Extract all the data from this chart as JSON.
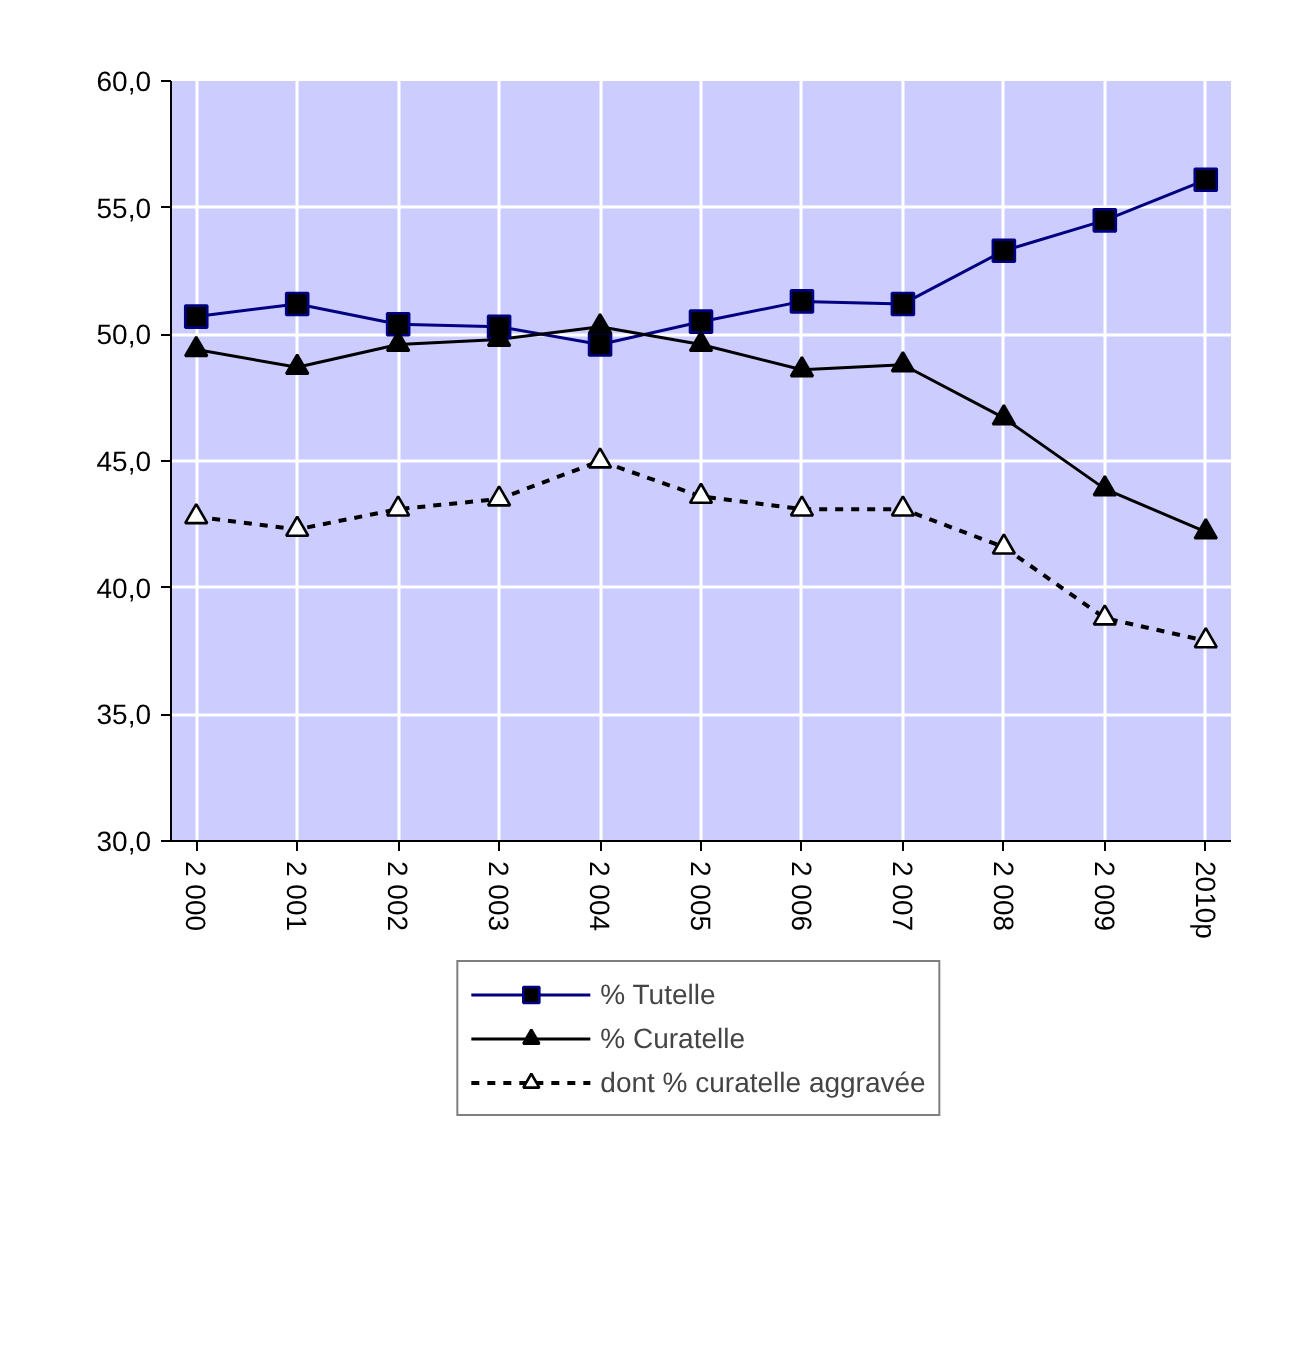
{
  "chart_data": {
    "type": "line",
    "categories": [
      "2 000",
      "2 001",
      "2 002",
      "2 003",
      "2 004",
      "2 005",
      "2 006",
      "2 007",
      "2 008",
      "2 009",
      "2010p"
    ],
    "ylim": [
      30,
      60
    ],
    "yticks": [
      {
        "value": 30,
        "label": "30,0"
      },
      {
        "value": 35,
        "label": "35,0"
      },
      {
        "value": 40,
        "label": "40,0"
      },
      {
        "value": 45,
        "label": "45,0"
      },
      {
        "value": 50,
        "label": "50,0"
      },
      {
        "value": 55,
        "label": "55,0"
      },
      {
        "value": 60,
        "label": "60,0"
      }
    ],
    "grid": true,
    "legend": "bottom",
    "series": [
      {
        "name": "% Tutelle",
        "color": "#000080",
        "marker": "square",
        "line_style": "solid",
        "values": [
          50.7,
          51.2,
          50.4,
          50.3,
          49.6,
          50.5,
          51.3,
          51.2,
          53.3,
          54.5,
          56.1
        ]
      },
      {
        "name": "% Curatelle",
        "color": "#000000",
        "marker": "triangle",
        "line_style": "solid",
        "values": [
          49.4,
          48.7,
          49.6,
          49.8,
          50.3,
          49.6,
          48.6,
          48.8,
          46.7,
          43.9,
          42.2
        ]
      },
      {
        "name": "dont % curatelle aggravée",
        "color": "#000000",
        "marker": "triangle",
        "line_style": "dotted",
        "values": [
          42.8,
          42.3,
          43.1,
          43.5,
          45.0,
          43.6,
          43.1,
          43.1,
          41.6,
          38.8,
          37.9
        ]
      }
    ]
  }
}
